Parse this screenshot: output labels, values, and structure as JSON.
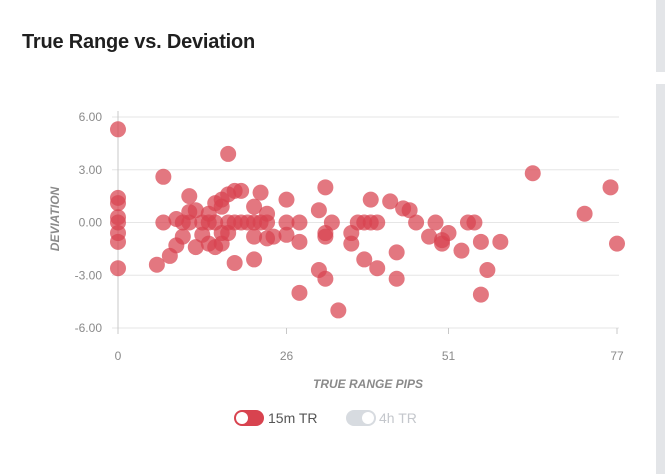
{
  "card": {
    "title": "True Range vs. Deviation"
  },
  "colors": {
    "point": "#d8434f",
    "legend_active": "#d8434f",
    "legend_inactive": "#d7dbe0",
    "grid": "#e6e6e6",
    "axis": "#c8c8c8",
    "tick_text": "#8a8a8a",
    "legend_text_active": "#555555",
    "legend_text_inactive": "#c4c7cc"
  },
  "legend": [
    {
      "label": "15m TR",
      "active": true
    },
    {
      "label": "4h TR",
      "active": false
    }
  ],
  "chart_data": {
    "type": "scatter",
    "xlabel": "TRUE RANGE PIPS",
    "ylabel": "DEVIATION",
    "xlim": [
      0,
      77
    ],
    "ylim": [
      -6,
      6
    ],
    "xticks": [
      "0",
      "26",
      "51",
      "77"
    ],
    "yticks": [
      "6.00",
      "3.00",
      "0.00",
      "-3.00",
      "-6.00"
    ],
    "grid": "horizontal",
    "legend_position": "bottom",
    "series": [
      {
        "name": "15m TR",
        "points": [
          [
            0,
            5.3
          ],
          [
            0,
            1.4
          ],
          [
            0,
            1.1
          ],
          [
            0,
            0.3
          ],
          [
            0,
            0
          ],
          [
            0,
            -0.6
          ],
          [
            0,
            -1.1
          ],
          [
            0,
            -2.6
          ],
          [
            6,
            -2.4
          ],
          [
            7,
            2.6
          ],
          [
            7,
            0
          ],
          [
            8,
            -1.9
          ],
          [
            9,
            -1.3
          ],
          [
            9,
            0.2
          ],
          [
            10,
            0
          ],
          [
            10,
            -0.8
          ],
          [
            11,
            1.5
          ],
          [
            11,
            0.6
          ],
          [
            11,
            0
          ],
          [
            12,
            0.7
          ],
          [
            12,
            -1.4
          ],
          [
            13,
            0
          ],
          [
            13,
            -0.7
          ],
          [
            14,
            0.5
          ],
          [
            14,
            0
          ],
          [
            14,
            -1.2
          ],
          [
            15,
            0
          ],
          [
            15,
            -1.4
          ],
          [
            15,
            1.1
          ],
          [
            16,
            1.3
          ],
          [
            16,
            0.9
          ],
          [
            16,
            -0.6
          ],
          [
            16,
            -1.2
          ],
          [
            17,
            3.9
          ],
          [
            17,
            1.6
          ],
          [
            17,
            0
          ],
          [
            17,
            -0.6
          ],
          [
            18,
            1.8
          ],
          [
            18,
            0
          ],
          [
            18,
            -2.3
          ],
          [
            19,
            1.8
          ],
          [
            19,
            0
          ],
          [
            20,
            0
          ],
          [
            21,
            0.9
          ],
          [
            21,
            -0.8
          ],
          [
            21,
            -2.1
          ],
          [
            21,
            0
          ],
          [
            22,
            1.7
          ],
          [
            22,
            0
          ],
          [
            23,
            0.5
          ],
          [
            23,
            -0.9
          ],
          [
            23,
            0
          ],
          [
            24,
            -0.8
          ],
          [
            26,
            1.3
          ],
          [
            26,
            0
          ],
          [
            26,
            -0.7
          ],
          [
            28,
            -1.1
          ],
          [
            28,
            0
          ],
          [
            28,
            -4.0
          ],
          [
            31,
            -2.7
          ],
          [
            31,
            0.7
          ],
          [
            32,
            2.0
          ],
          [
            32,
            -0.6
          ],
          [
            32,
            -3.2
          ],
          [
            32,
            -0.8
          ],
          [
            33,
            0
          ],
          [
            34,
            -5.0
          ],
          [
            36,
            -1.2
          ],
          [
            36,
            -0.6
          ],
          [
            37,
            0
          ],
          [
            38,
            -2.1
          ],
          [
            38,
            0
          ],
          [
            39,
            1.3
          ],
          [
            39,
            0
          ],
          [
            40,
            -2.6
          ],
          [
            40,
            0
          ],
          [
            42,
            1.2
          ],
          [
            43,
            -1.7
          ],
          [
            43,
            -3.2
          ],
          [
            44,
            0.8
          ],
          [
            45,
            0.7
          ],
          [
            46,
            0
          ],
          [
            48,
            -0.8
          ],
          [
            49,
            0
          ],
          [
            50,
            -1.2
          ],
          [
            50,
            -1.0
          ],
          [
            51,
            -0.6
          ],
          [
            53,
            -1.6
          ],
          [
            55,
            0
          ],
          [
            54,
            0
          ],
          [
            56,
            -1.1
          ],
          [
            56,
            -4.1
          ],
          [
            57,
            -2.7
          ],
          [
            59,
            -1.1
          ],
          [
            64,
            2.8
          ],
          [
            72,
            0.5
          ],
          [
            76,
            2.0
          ],
          [
            77,
            -1.2
          ]
        ]
      },
      {
        "name": "4h TR",
        "points": []
      }
    ]
  }
}
